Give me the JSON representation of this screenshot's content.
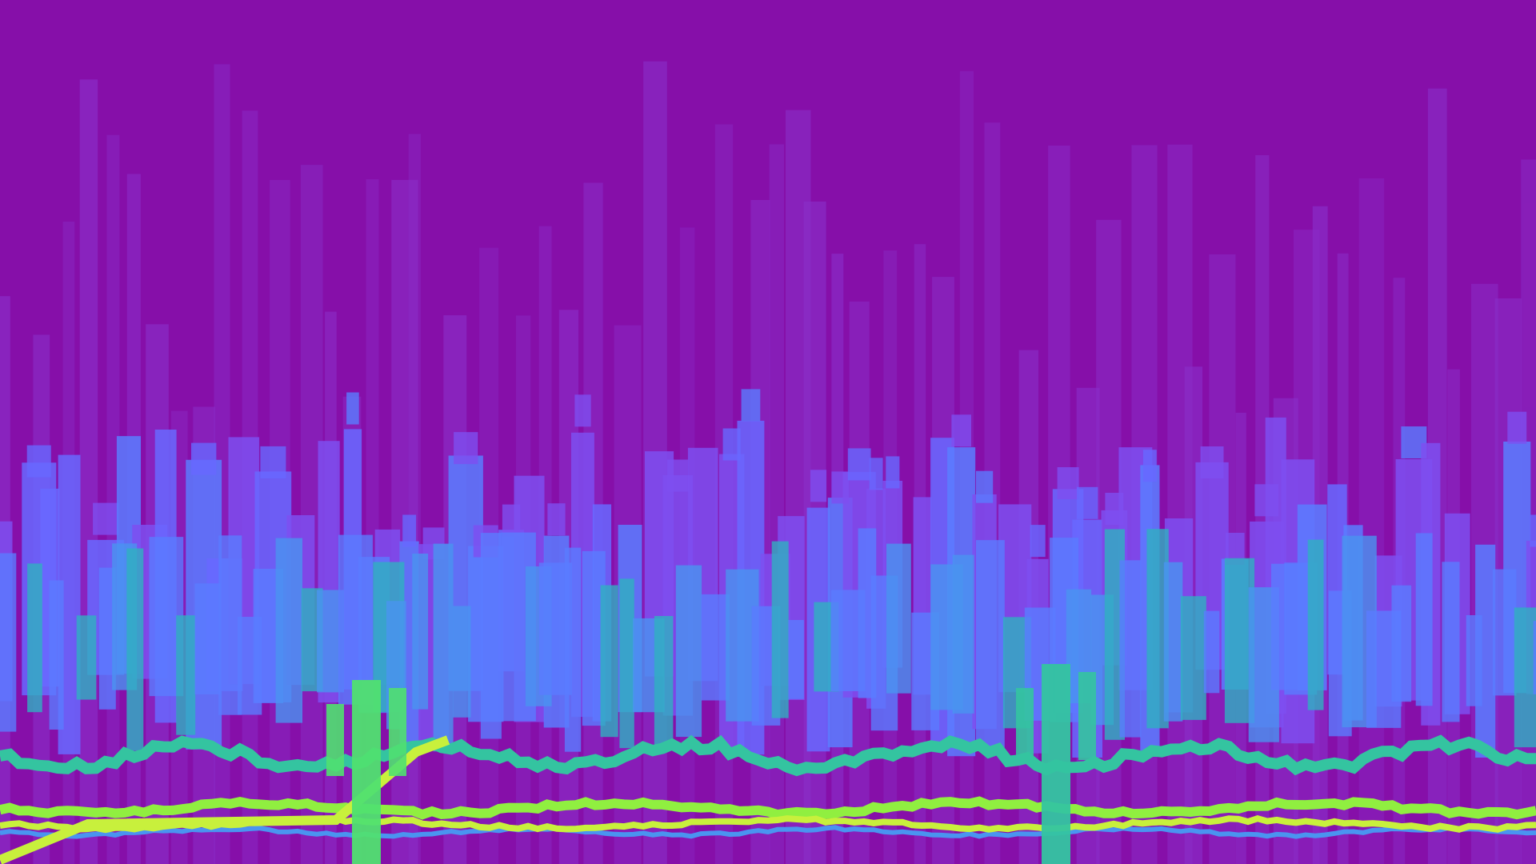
{
  "scene": {
    "background_color": "#860fa9",
    "palette": {
      "deep_violet": "#8a2fc9",
      "violet": "#7e4ff0",
      "periwinkle": "#6868ff",
      "blue": "#5a7cff",
      "sky_blue": "#4a94f0",
      "teal": "#30b0c0",
      "teal_green": "#34c4a0",
      "green": "#50e070",
      "lime": "#90ef40",
      "yellow_green": "#c8f03c"
    }
  }
}
